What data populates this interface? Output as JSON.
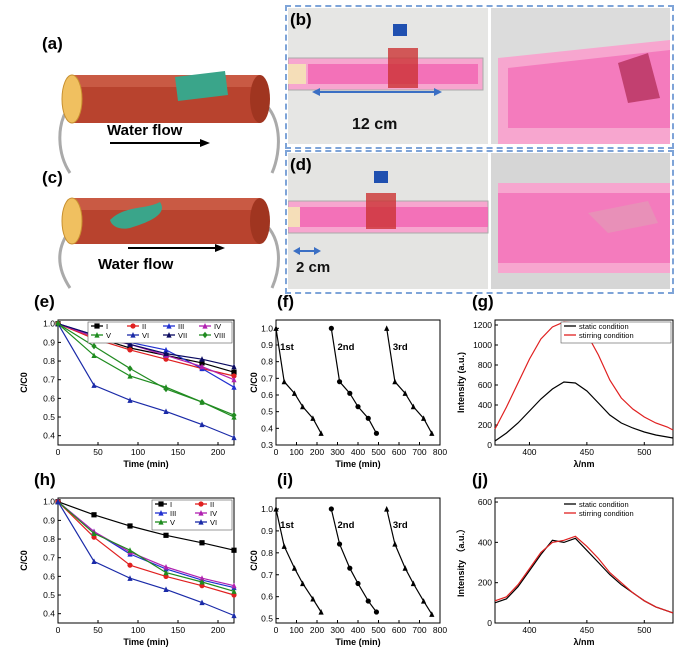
{
  "panel_labels": {
    "a": "(a)",
    "b": "(b)",
    "c": "(c)",
    "d": "(d)",
    "e": "(e)",
    "f": "(f)",
    "g": "(g)",
    "h": "(h)",
    "i": "(i)",
    "j": "(j)"
  },
  "schematic": {
    "water_flow_a": "Water flow",
    "water_flow_c": "Water flow",
    "scale_b": "12 cm",
    "scale_d": "2 cm"
  },
  "colors": {
    "tube": "#b8432e",
    "tube_cap": "#f0c060",
    "cloth": "#3aa58a",
    "dash_border": "#7ea4d8",
    "pink": "#f25fb0"
  },
  "chart_data": [
    {
      "id": "e",
      "type": "line",
      "xlabel": "Time (min)",
      "ylabel": "C/C0",
      "xticks": [
        0,
        50,
        100,
        150,
        200
      ],
      "yticks": [
        0.4,
        0.5,
        0.6,
        0.7,
        0.8,
        0.9,
        1.0
      ],
      "xlim": [
        0,
        220
      ],
      "ylim": [
        0.35,
        1.02
      ],
      "legend": [
        "I",
        "II",
        "III",
        "IV",
        "V",
        "VI",
        "VII",
        "VIII"
      ],
      "series": [
        {
          "name": "I",
          "color": "#000000",
          "marker": "square",
          "x": [
            0,
            45,
            90,
            135,
            180,
            220
          ],
          "y": [
            1,
            0.93,
            0.87,
            0.83,
            0.79,
            0.74
          ]
        },
        {
          "name": "II",
          "color": "#e02020",
          "marker": "circle",
          "x": [
            0,
            45,
            90,
            135,
            180,
            220
          ],
          "y": [
            1,
            0.92,
            0.86,
            0.81,
            0.76,
            0.72
          ]
        },
        {
          "name": "III",
          "color": "#2030d0",
          "marker": "tri",
          "x": [
            0,
            45,
            90,
            135,
            180,
            220
          ],
          "y": [
            1,
            0.94,
            0.9,
            0.86,
            0.76,
            0.66
          ]
        },
        {
          "name": "IV",
          "color": "#b020b0",
          "marker": "tri",
          "x": [
            0,
            45,
            90,
            135,
            180,
            220
          ],
          "y": [
            1,
            0.93,
            0.89,
            0.83,
            0.77,
            0.7
          ]
        },
        {
          "name": "V",
          "color": "#1e8c1e",
          "marker": "tri",
          "x": [
            0,
            45,
            90,
            135,
            180,
            220
          ],
          "y": [
            1,
            0.83,
            0.72,
            0.66,
            0.58,
            0.5
          ]
        },
        {
          "name": "VI",
          "color": "#1a2aa8",
          "marker": "tri",
          "x": [
            0,
            45,
            90,
            135,
            180,
            220
          ],
          "y": [
            1,
            0.67,
            0.59,
            0.53,
            0.46,
            0.39
          ]
        },
        {
          "name": "VII",
          "color": "#0a0a60",
          "marker": "tri",
          "x": [
            0,
            45,
            90,
            135,
            180,
            220
          ],
          "y": [
            1,
            0.94,
            0.89,
            0.84,
            0.81,
            0.77
          ]
        },
        {
          "name": "VIII",
          "color": "#228b22",
          "marker": "diamond",
          "x": [
            0,
            45,
            90,
            135,
            180,
            220
          ],
          "y": [
            1,
            0.88,
            0.76,
            0.65,
            0.58,
            0.51
          ]
        }
      ]
    },
    {
      "id": "f",
      "type": "line",
      "xlabel": "Time (min)",
      "ylabel": "C/C0",
      "xticks": [
        0,
        100,
        200,
        300,
        400,
        500,
        600,
        700,
        800
      ],
      "yticks": [
        0.3,
        0.4,
        0.5,
        0.6,
        0.7,
        0.8,
        0.9,
        1.0
      ],
      "xlim": [
        0,
        800
      ],
      "ylim": [
        0.3,
        1.05
      ],
      "annotations": [
        "1st",
        "2nd",
        "3rd"
      ],
      "series": [
        {
          "name": "cycle 1",
          "color": "#000000",
          "marker": "tri",
          "x": [
            0,
            40,
            90,
            130,
            180,
            220
          ],
          "y": [
            1,
            0.68,
            0.61,
            0.53,
            0.46,
            0.37
          ]
        },
        {
          "name": "cycle 2",
          "color": "#000000",
          "marker": "circle",
          "x": [
            270,
            310,
            360,
            400,
            450,
            490
          ],
          "y": [
            1,
            0.68,
            0.61,
            0.53,
            0.46,
            0.37
          ]
        },
        {
          "name": "cycle 3",
          "color": "#000000",
          "marker": "tri",
          "x": [
            540,
            580,
            630,
            670,
            720,
            760
          ],
          "y": [
            1,
            0.68,
            0.61,
            0.53,
            0.46,
            0.37
          ]
        }
      ]
    },
    {
      "id": "g",
      "type": "line",
      "xlabel": "λ/nm",
      "ylabel": "Intensity (a.u.)",
      "xticks": [
        400,
        450,
        500
      ],
      "yticks": [
        0,
        200,
        400,
        600,
        800,
        1000,
        1200
      ],
      "xlim": [
        370,
        525
      ],
      "ylim": [
        0,
        1250
      ],
      "legend": [
        "static condition",
        "stirring condition"
      ],
      "series": [
        {
          "name": "static condition",
          "color": "#000000",
          "x": [
            370,
            380,
            390,
            400,
            410,
            420,
            430,
            440,
            450,
            460,
            470,
            480,
            490,
            500,
            510,
            520,
            525
          ],
          "y": [
            40,
            120,
            220,
            340,
            460,
            560,
            630,
            620,
            540,
            420,
            300,
            220,
            170,
            130,
            100,
            80,
            70
          ]
        },
        {
          "name": "stirring condition",
          "color": "#e02020",
          "x": [
            370,
            380,
            390,
            400,
            410,
            420,
            430,
            440,
            450,
            460,
            470,
            480,
            490,
            500,
            510,
            520,
            525
          ],
          "y": [
            160,
            380,
            620,
            860,
            1060,
            1180,
            1230,
            1220,
            1110,
            900,
            650,
            470,
            360,
            280,
            220,
            180,
            150
          ]
        }
      ]
    },
    {
      "id": "h",
      "type": "line",
      "xlabel": "Time (min)",
      "ylabel": "C/C0",
      "xticks": [
        0,
        50,
        100,
        150,
        200
      ],
      "yticks": [
        0.4,
        0.5,
        0.6,
        0.7,
        0.8,
        0.9,
        1.0
      ],
      "xlim": [
        0,
        220
      ],
      "ylim": [
        0.35,
        1.02
      ],
      "legend": [
        "I",
        "II",
        "III",
        "IV",
        "V",
        "VI"
      ],
      "series": [
        {
          "name": "I",
          "color": "#000000",
          "marker": "square",
          "x": [
            0,
            45,
            90,
            135,
            180,
            220
          ],
          "y": [
            1,
            0.93,
            0.87,
            0.82,
            0.78,
            0.74
          ]
        },
        {
          "name": "II",
          "color": "#e02020",
          "marker": "circle",
          "x": [
            0,
            45,
            90,
            135,
            180,
            220
          ],
          "y": [
            1,
            0.81,
            0.66,
            0.6,
            0.55,
            0.5
          ]
        },
        {
          "name": "III",
          "color": "#2030d0",
          "marker": "tri",
          "x": [
            0,
            45,
            90,
            135,
            180,
            220
          ],
          "y": [
            1,
            0.84,
            0.72,
            0.64,
            0.58,
            0.54
          ]
        },
        {
          "name": "IV",
          "color": "#b020b0",
          "marker": "tri",
          "x": [
            0,
            45,
            90,
            135,
            180,
            220
          ],
          "y": [
            1,
            0.84,
            0.73,
            0.65,
            0.59,
            0.55
          ]
        },
        {
          "name": "V",
          "color": "#1e8c1e",
          "marker": "tri",
          "x": [
            0,
            45,
            90,
            135,
            180,
            220
          ],
          "y": [
            1,
            0.83,
            0.74,
            0.62,
            0.57,
            0.52
          ]
        },
        {
          "name": "VI",
          "color": "#1a2aa8",
          "marker": "tri",
          "x": [
            0,
            45,
            90,
            135,
            180,
            220
          ],
          "y": [
            1,
            0.68,
            0.59,
            0.53,
            0.46,
            0.39
          ]
        }
      ]
    },
    {
      "id": "i",
      "type": "line",
      "xlabel": "Time (min)",
      "ylabel": "C/C0",
      "xticks": [
        0,
        100,
        200,
        300,
        400,
        500,
        600,
        700,
        800
      ],
      "yticks": [
        0.5,
        0.6,
        0.7,
        0.8,
        0.9,
        1.0
      ],
      "xlim": [
        0,
        800
      ],
      "ylim": [
        0.48,
        1.05
      ],
      "annotations": [
        "1st",
        "2nd",
        "3rd"
      ],
      "series": [
        {
          "name": "cycle 1",
          "color": "#000000",
          "marker": "tri",
          "x": [
            0,
            40,
            90,
            130,
            180,
            220
          ],
          "y": [
            1,
            0.83,
            0.73,
            0.66,
            0.59,
            0.53
          ]
        },
        {
          "name": "cycle 2",
          "color": "#000000",
          "marker": "circle",
          "x": [
            270,
            310,
            360,
            400,
            450,
            490
          ],
          "y": [
            1,
            0.84,
            0.73,
            0.66,
            0.58,
            0.53
          ]
        },
        {
          "name": "cycle 3",
          "color": "#000000",
          "marker": "tri",
          "x": [
            540,
            580,
            630,
            670,
            720,
            760
          ],
          "y": [
            1,
            0.84,
            0.73,
            0.66,
            0.58,
            0.52
          ]
        }
      ]
    },
    {
      "id": "j",
      "type": "line",
      "xlabel": "λ/nm",
      "ylabel": "Intensity （a.u.）",
      "xticks": [
        400,
        450,
        500
      ],
      "yticks": [
        0,
        200,
        400,
        600
      ],
      "xlim": [
        370,
        525
      ],
      "ylim": [
        0,
        620
      ],
      "legend": [
        "static condition",
        "stirring condition"
      ],
      "series": [
        {
          "name": "static condition",
          "color": "#000000",
          "x": [
            370,
            380,
            390,
            400,
            410,
            420,
            430,
            440,
            450,
            460,
            470,
            480,
            490,
            500,
            510,
            520,
            525
          ],
          "y": [
            100,
            120,
            180,
            260,
            340,
            410,
            400,
            420,
            360,
            300,
            240,
            190,
            150,
            110,
            80,
            60,
            50
          ]
        },
        {
          "name": "stirring condition",
          "color": "#e02020",
          "x": [
            370,
            380,
            390,
            400,
            410,
            420,
            430,
            440,
            450,
            460,
            470,
            480,
            490,
            500,
            510,
            520,
            525
          ],
          "y": [
            110,
            130,
            190,
            270,
            350,
            400,
            410,
            430,
            380,
            320,
            250,
            200,
            150,
            110,
            80,
            60,
            50
          ]
        }
      ]
    }
  ]
}
